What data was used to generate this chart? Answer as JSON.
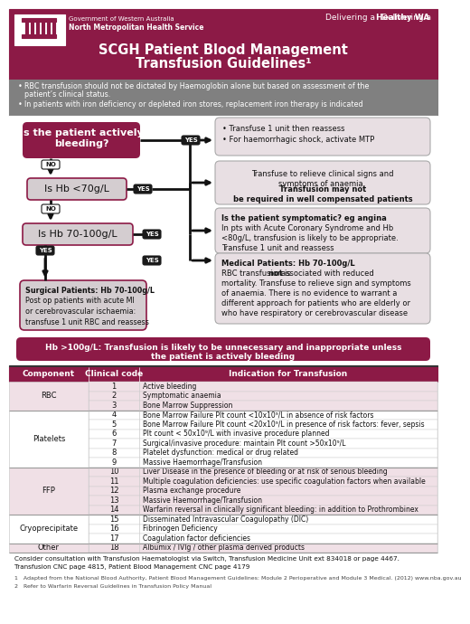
{
  "title_line1": "SCGH Patient Blood Management",
  "title_line2": "Transfusion Guidelines¹",
  "header_bg": "#8C1A46",
  "header_text_color": "#FFFFFF",
  "bullet1": "RBC transfusion should not be dictated by Haemoglobin alone but based on assessment of the patient’s clinical status.",
  "bullet2": "In patients with iron deficiency or depleted iron stores, replacement iron therapy is indicated",
  "bullet_bg": "#808080",
  "box_dark": "#8C1A46",
  "box_light": "#D4CDD0",
  "box_light2": "#E8E0E4",
  "dark_text": "#1A1A1A",
  "table_header_bg": "#8C1A46",
  "table_row_pink": "#F0E0E6",
  "table_row_white": "#FFFFFF",
  "footer_text": "Consider consultation with Transfusion Haematologist via Switch, Transfusion Medicine Unit ext 834018 or page 4467.\nTransfusion CNC page 4815, Patient Blood Management CNC page 4179",
  "footnote1": "1   Adapted from the National Blood Authority, Patient Blood Management Guidelines: Module 2 Perioperative and Module 3 Medical. (2012) www.nba.gov.au",
  "footnote2": "2   Refer to Warfarin Reversal Guidelines in Transfusion Policy Manual",
  "components": [
    "RBC",
    "Platelets",
    "FFP",
    "Cryoprecipitate",
    "Other"
  ],
  "codes": [
    [
      1,
      2,
      3
    ],
    [
      4,
      5,
      6,
      7,
      8,
      9
    ],
    [
      10,
      11,
      12,
      13,
      14
    ],
    [
      15,
      16,
      17
    ],
    [
      18
    ]
  ],
  "indications": [
    [
      "Active bleeding",
      "Symptomatic anaemia",
      "Bone Marrow Suppression"
    ],
    [
      "Bone Marrow Failure Plt count <10x10⁹/L in absence of risk factors",
      "Bone Marrow Failure Plt count <20x10⁹/L in presence of risk factors: fever, sepsis",
      "Plt count < 50x10⁹/L with invasive procedure planned",
      "Surgical/invasive procedure: maintain Plt count >50x10⁹/L",
      "Platelet dysfunction: medical or drug related",
      "Massive Haemorrhage/Transfusion"
    ],
    [
      "Liver Disease in the presence of bleeding or at risk of serious bleeding",
      "Multiple coagulation deficiencies: use specific coagulation factors when available",
      "Plasma exchange procedure",
      "Massive Haemorrhage/Transfusion",
      "Warfarin reversal in clinically significant bleeding: in addition to Prothrombinex"
    ],
    [
      "Disseminated Intravascular Coagulopathy (DIC)",
      "Fibrinogen Deficiency",
      "Coagulation factor deficiencies"
    ],
    [
      "Albumix / IVIg / other plasma derived products"
    ]
  ]
}
